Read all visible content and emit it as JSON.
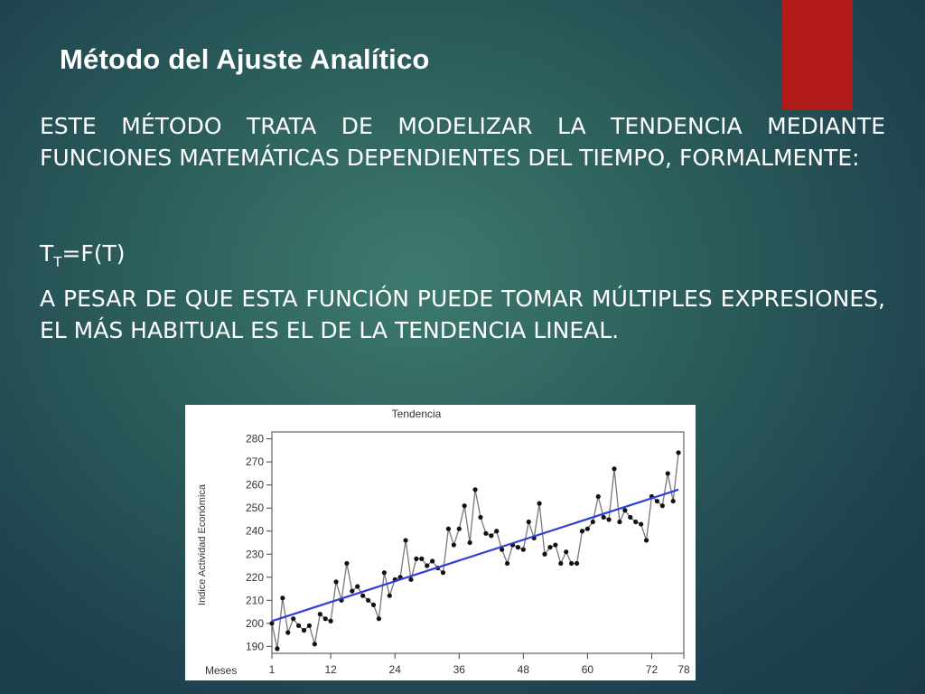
{
  "slide": {
    "title": "Método del Ajuste Analítico",
    "paragraph1": "ESTE MÉTODO TRATA DE MODELIZAR LA TENDENCIA MEDIANTE FUNCIONES MATEMÁTICAS DEPENDIENTES DEL TIEMPO, FORMALMENTE:",
    "formula_lhs": "T",
    "formula_sub": "T",
    "formula_rhs": "=F(T)",
    "paragraph2": "A PESAR DE QUE ESTA FUNCIÓN PUEDE TOMAR MÚLTIPLES EXPRESIONES, EL MÁS HABITUAL ES EL DE LA TENDENCIA LINEAL."
  },
  "colors": {
    "accent_red": "#b01b17",
    "trend_line": "#2f3fd6",
    "series_line": "#777777"
  },
  "chart_data": {
    "type": "line",
    "title": "Tendencia",
    "xlabel": "Meses",
    "ylabel": "Indice Actividad Económica",
    "xlim": [
      1,
      78
    ],
    "ylim": [
      187,
      283
    ],
    "x_ticks": [
      1,
      12,
      24,
      36,
      48,
      60,
      72,
      78
    ],
    "y_ticks": [
      190,
      200,
      210,
      220,
      230,
      240,
      250,
      260,
      270,
      280
    ],
    "grid": false,
    "series": [
      {
        "style": "line-with-points",
        "x": [
          1,
          2,
          3,
          4,
          5,
          6,
          7,
          8,
          9,
          10,
          11,
          12,
          13,
          14,
          15,
          16,
          17,
          18,
          19,
          20,
          21,
          22,
          23,
          24,
          25,
          26,
          27,
          28,
          29,
          30,
          31,
          32,
          33,
          34,
          35,
          36,
          37,
          38,
          39,
          40,
          41,
          42,
          43,
          44,
          45,
          46,
          47,
          48,
          49,
          50,
          51,
          52,
          53,
          54,
          55,
          56,
          57,
          58,
          59,
          60,
          61,
          62,
          63,
          64,
          65,
          66,
          67,
          68,
          69,
          70,
          71,
          72,
          73,
          74,
          75,
          76,
          77
        ],
        "y": [
          200,
          189,
          211,
          196,
          202,
          199,
          197,
          199,
          191,
          204,
          202,
          201,
          218,
          210,
          226,
          214,
          216,
          212,
          210,
          208,
          202,
          222,
          212,
          219,
          220,
          236,
          219,
          228,
          228,
          225,
          227,
          224,
          222,
          241,
          234,
          241,
          251,
          235,
          258,
          246,
          239,
          238,
          240,
          232,
          226,
          234,
          233,
          232,
          244,
          237,
          252,
          230,
          233,
          234,
          226,
          231,
          226,
          226,
          240,
          241,
          244,
          255,
          246,
          245,
          267,
          244,
          249,
          246,
          244,
          243,
          236,
          255,
          253,
          251,
          265,
          253,
          274
        ]
      },
      {
        "style": "trend",
        "x": [
          1,
          77
        ],
        "y": [
          201,
          258
        ]
      }
    ]
  }
}
